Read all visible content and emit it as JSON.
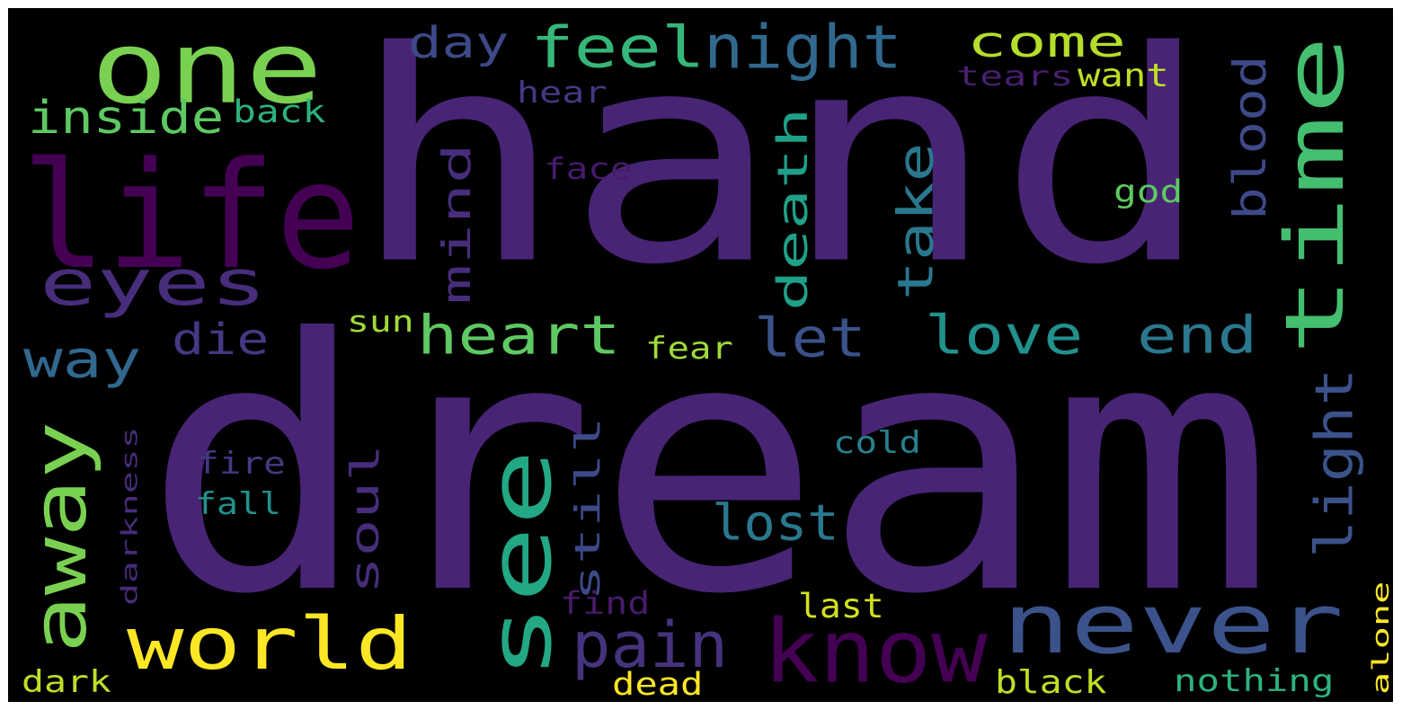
{
  "words": [
    {
      "text": "dream",
      "color": "#482475"
    },
    {
      "text": "hand",
      "color": "#482475"
    },
    {
      "text": "one",
      "color": "#7ad151"
    },
    {
      "text": "life",
      "color": "#440154"
    },
    {
      "text": "eyes",
      "color": "#472d7b"
    },
    {
      "text": "time",
      "color": "#44bf70"
    },
    {
      "text": "see",
      "color": "#22a884"
    },
    {
      "text": "never",
      "color": "#3b528b"
    },
    {
      "text": "world",
      "color": "#fde725"
    },
    {
      "text": "away",
      "color": "#7ad151"
    },
    {
      "text": "know",
      "color": "#440154"
    },
    {
      "text": "heart",
      "color": "#5ec962"
    },
    {
      "text": "love",
      "color": "#21918c"
    },
    {
      "text": "end",
      "color": "#2a788e"
    },
    {
      "text": "day",
      "color": "#3e4989"
    },
    {
      "text": "feel",
      "color": "#35b779"
    },
    {
      "text": "night",
      "color": "#31688e"
    },
    {
      "text": "come",
      "color": "#b5de2b"
    },
    {
      "text": "inside",
      "color": "#5ec962"
    },
    {
      "text": "back",
      "color": "#2db27d"
    },
    {
      "text": "hear",
      "color": "#443983"
    },
    {
      "text": "tears",
      "color": "#481f70"
    },
    {
      "text": "want",
      "color": "#bddf26"
    },
    {
      "text": "face",
      "color": "#481a6c"
    },
    {
      "text": "god",
      "color": "#5ec962"
    },
    {
      "text": "way",
      "color": "#31688e"
    },
    {
      "text": "die",
      "color": "#443983"
    },
    {
      "text": "sun",
      "color": "#a0da39"
    },
    {
      "text": "let",
      "color": "#3b528b"
    },
    {
      "text": "fear",
      "color": "#9fda3a"
    },
    {
      "text": "mind",
      "color": "#472d7b"
    },
    {
      "text": "death",
      "color": "#1fa088"
    },
    {
      "text": "take",
      "color": "#2a788e"
    },
    {
      "text": "blood",
      "color": "#3e4989"
    },
    {
      "text": "light",
      "color": "#3b528b"
    },
    {
      "text": "soul",
      "color": "#472d7b"
    },
    {
      "text": "still",
      "color": "#3e4989"
    },
    {
      "text": "lost",
      "color": "#2a788e"
    },
    {
      "text": "cold",
      "color": "#26828e"
    },
    {
      "text": "darkness",
      "color": "#472c7a"
    },
    {
      "text": "fire",
      "color": "#443983"
    },
    {
      "text": "fall",
      "color": "#21918c"
    },
    {
      "text": "pain",
      "color": "#46337e"
    },
    {
      "text": "find",
      "color": "#481a6c"
    },
    {
      "text": "last",
      "color": "#d0e11c"
    },
    {
      "text": "dark",
      "color": "#bddf26"
    },
    {
      "text": "dead",
      "color": "#fde725"
    },
    {
      "text": "black",
      "color": "#bddf26"
    },
    {
      "text": "nothing",
      "color": "#2db27d"
    },
    {
      "text": "alone",
      "color": "#fde725"
    }
  ]
}
